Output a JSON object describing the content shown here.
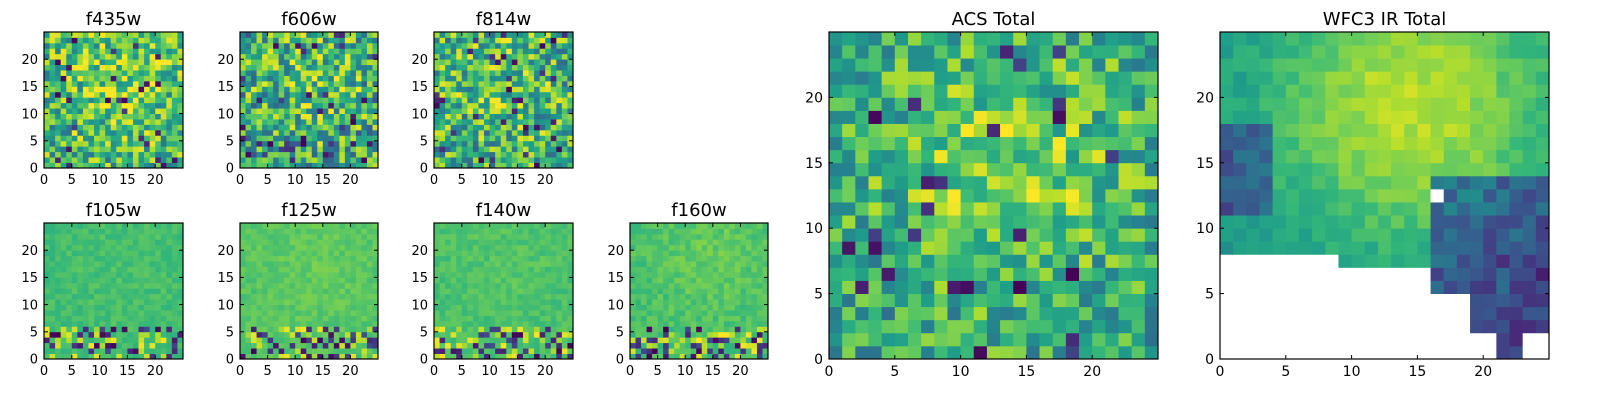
{
  "chart_data": [
    {
      "type": "heatmap",
      "title": "f435w",
      "xticks": [
        "0",
        "5",
        "10",
        "15",
        "20"
      ],
      "yticks": [
        "0",
        "5",
        "10",
        "15",
        "20"
      ],
      "xlim": [
        0,
        25
      ],
      "ylim": [
        0,
        25
      ],
      "colormap": "viridis",
      "grid": false,
      "masked_rows_below": null
    },
    {
      "type": "heatmap",
      "title": "f606w",
      "xticks": [
        "0",
        "5",
        "10",
        "15",
        "20"
      ],
      "yticks": [
        "0",
        "5",
        "10",
        "15",
        "20"
      ],
      "xlim": [
        0,
        25
      ],
      "ylim": [
        0,
        25
      ],
      "colormap": "viridis",
      "grid": false,
      "masked_rows_below": null
    },
    {
      "type": "heatmap",
      "title": "f814w",
      "xticks": [
        "0",
        "5",
        "10",
        "15",
        "20"
      ],
      "yticks": [
        "0",
        "5",
        "10",
        "15",
        "20"
      ],
      "xlim": [
        0,
        25
      ],
      "ylim": [
        0,
        25
      ],
      "colormap": "viridis",
      "grid": false,
      "masked_rows_below": null
    },
    {
      "type": "heatmap",
      "title": "f105w",
      "xticks": [
        "0",
        "5",
        "10",
        "15",
        "20"
      ],
      "yticks": [
        "0",
        "5",
        "10",
        "15",
        "20"
      ],
      "xlim": [
        0,
        25
      ],
      "ylim": [
        0,
        25
      ],
      "colormap": "viridis",
      "grid": false,
      "masked_rows_below": null
    },
    {
      "type": "heatmap",
      "title": "f125w",
      "xticks": [
        "0",
        "5",
        "10",
        "15",
        "20"
      ],
      "yticks": [
        "0",
        "5",
        "10",
        "15",
        "20"
      ],
      "xlim": [
        0,
        25
      ],
      "ylim": [
        0,
        25
      ],
      "colormap": "viridis",
      "grid": false,
      "masked_rows_below": null
    },
    {
      "type": "heatmap",
      "title": "f140w",
      "xticks": [
        "0",
        "5",
        "10",
        "15",
        "20"
      ],
      "yticks": [
        "0",
        "5",
        "10",
        "15",
        "20"
      ],
      "xlim": [
        0,
        25
      ],
      "ylim": [
        0,
        25
      ],
      "colormap": "viridis",
      "grid": false,
      "masked_rows_below": null
    },
    {
      "type": "heatmap",
      "title": "f160w",
      "xticks": [
        "0",
        "5",
        "10",
        "15",
        "20"
      ],
      "yticks": [
        "0",
        "5",
        "10",
        "15",
        "20"
      ],
      "xlim": [
        0,
        25
      ],
      "ylim": [
        0,
        25
      ],
      "colormap": "viridis",
      "grid": false,
      "masked_rows_below": null
    },
    {
      "type": "heatmap",
      "title": "ACS Total",
      "xticks": [
        "0",
        "5",
        "10",
        "15",
        "20"
      ],
      "yticks": [
        "0",
        "5",
        "10",
        "15",
        "20"
      ],
      "xlim": [
        0,
        25
      ],
      "ylim": [
        0,
        25
      ],
      "colormap": "viridis",
      "grid": false,
      "masked_rows_below": null
    },
    {
      "type": "heatmap",
      "title": "WFC3 IR Total",
      "xticks": [
        "0",
        "5",
        "10",
        "15",
        "20"
      ],
      "yticks": [
        "0",
        "5",
        "10",
        "15",
        "20"
      ],
      "xlim": [
        0,
        25
      ],
      "ylim": [
        0,
        25
      ],
      "colormap": "viridis",
      "grid": false,
      "masked_rows_below": 8
    }
  ]
}
